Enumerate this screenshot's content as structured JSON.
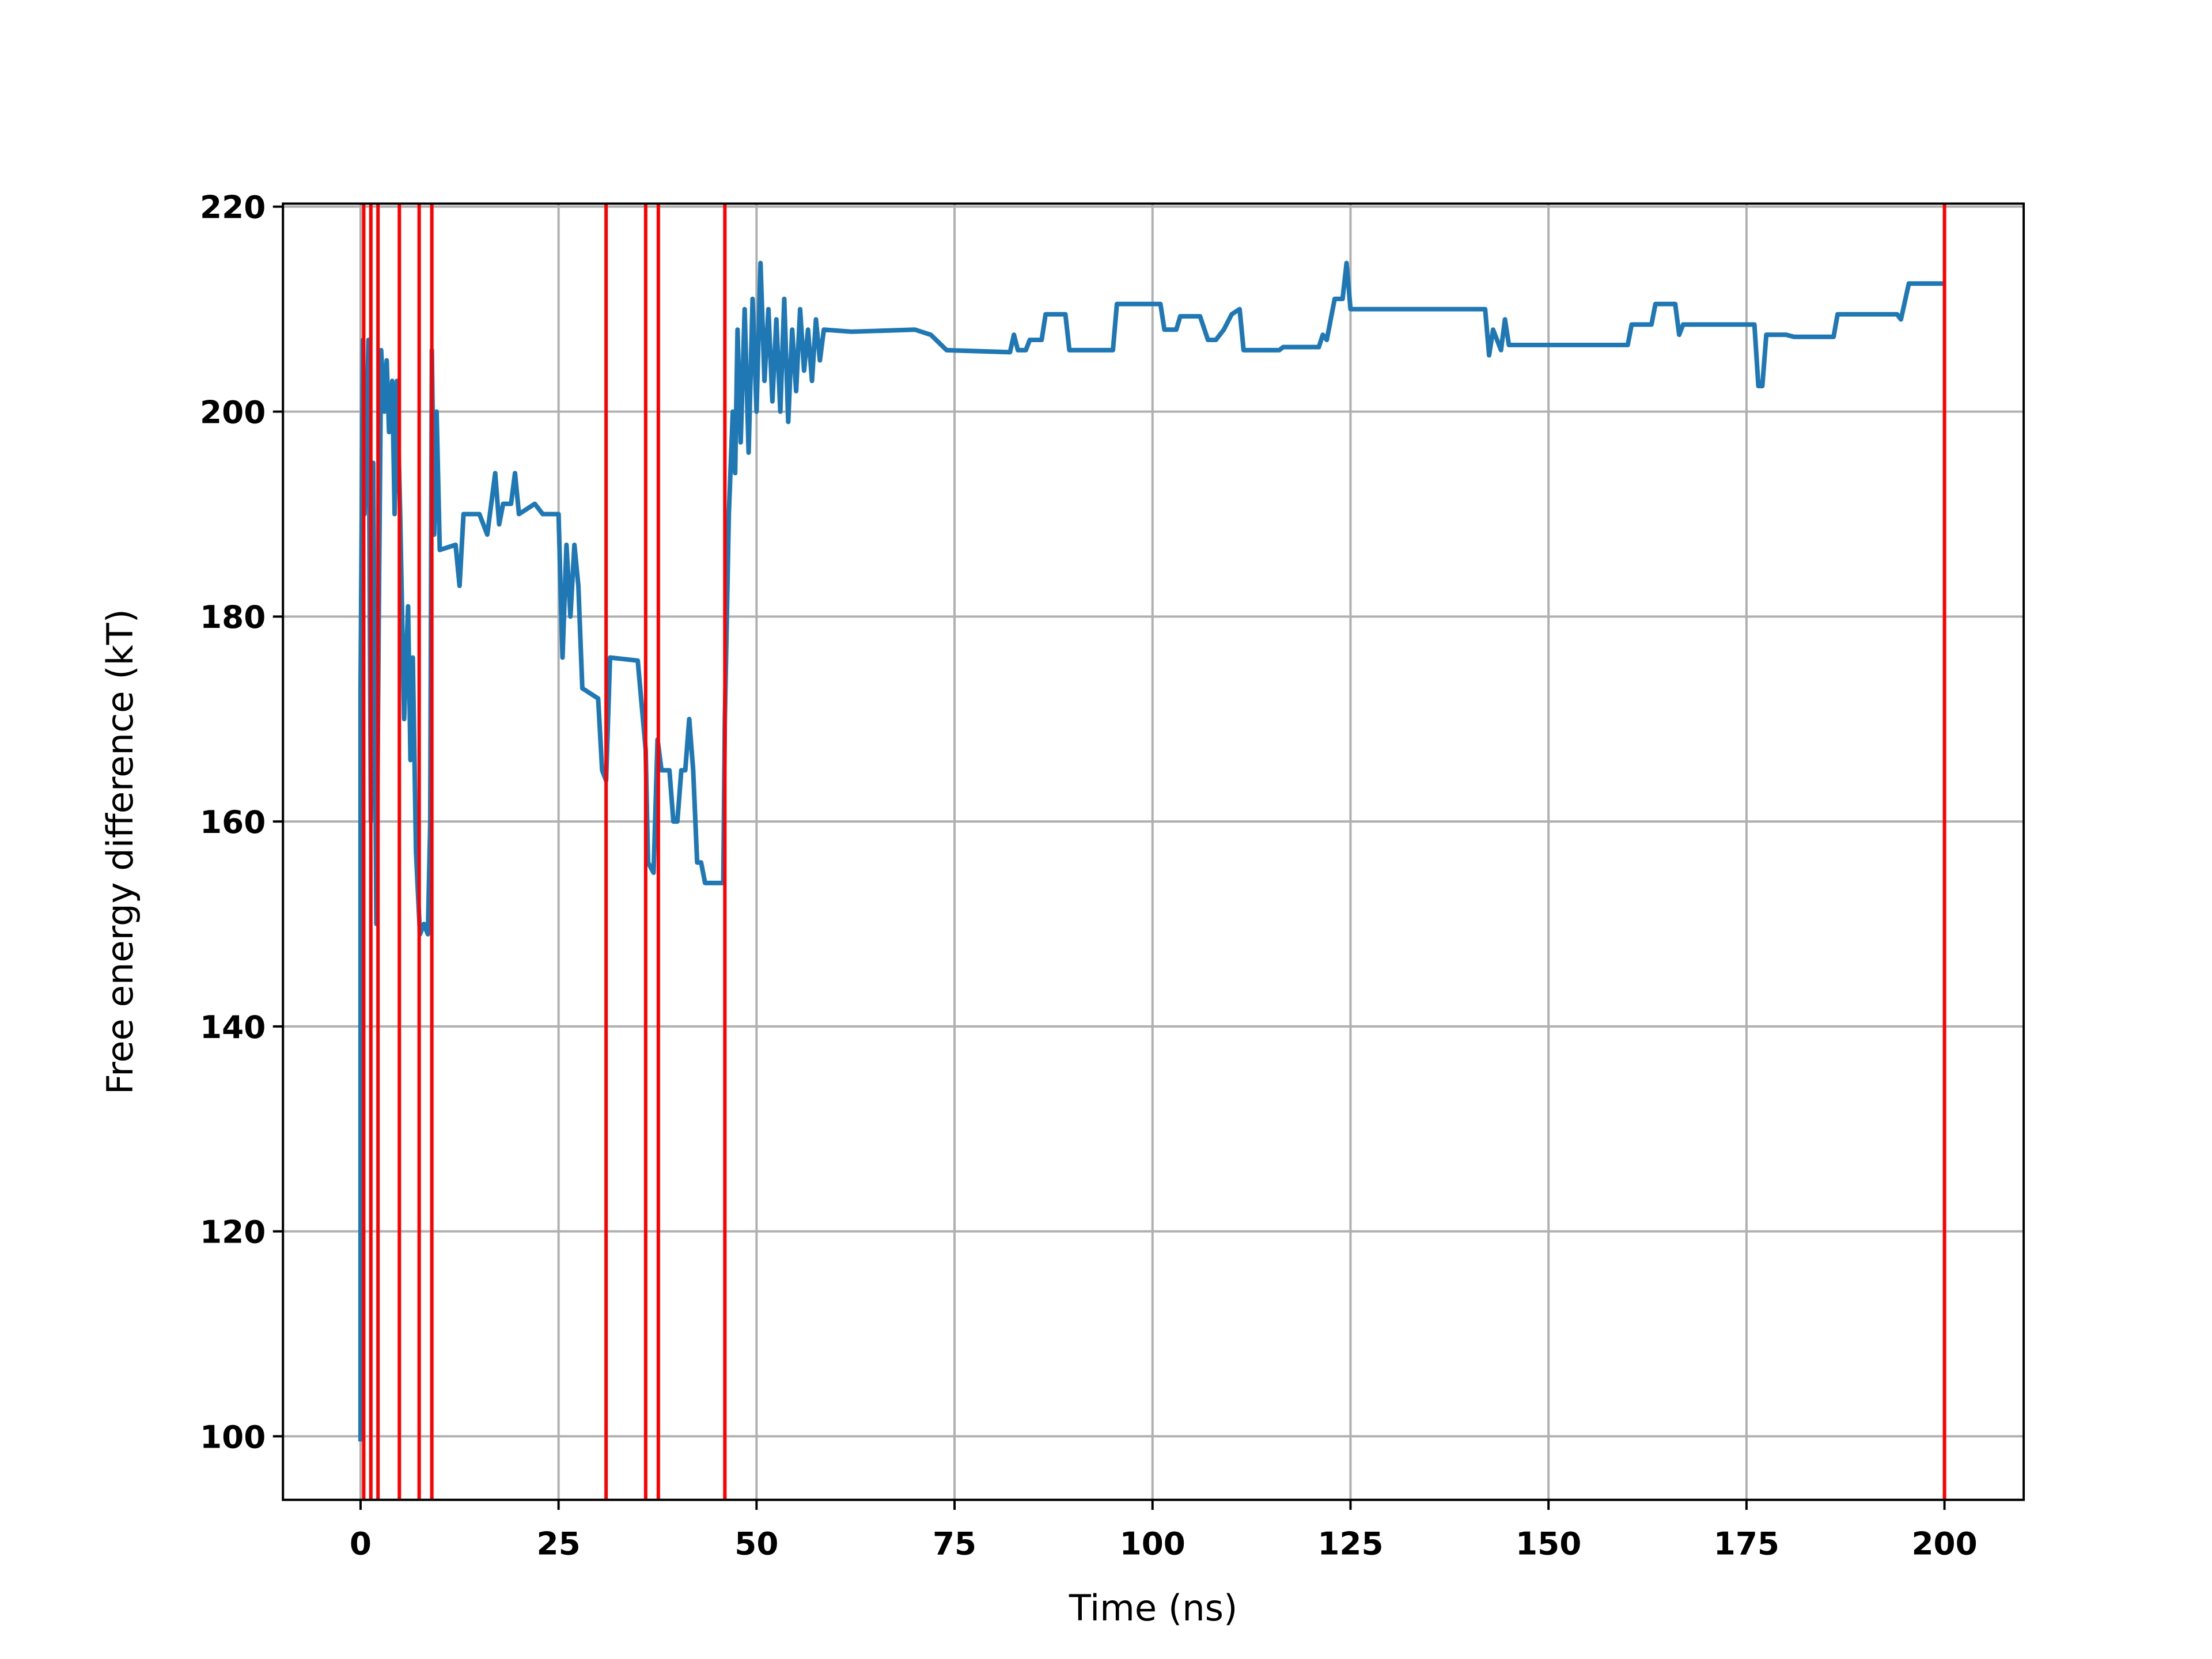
{
  "chart_data": {
    "type": "line",
    "xlabel": "Time (ns)",
    "ylabel": "Free energy difference (kT)",
    "xlim": [
      -9.8,
      210
    ],
    "ylim": [
      93.8,
      220.3
    ],
    "xticks": [
      0,
      25,
      50,
      75,
      100,
      125,
      150,
      175,
      200
    ],
    "yticks": [
      100,
      120,
      140,
      160,
      180,
      200,
      220
    ],
    "grid": true,
    "vlines": {
      "color": "#ff0000",
      "x": [
        0.4,
        1.3,
        2.2,
        4.9,
        7.4,
        9,
        31,
        36,
        37.6,
        46,
        200
      ]
    },
    "series": [
      {
        "color": "#1f77b4",
        "x": [
          0,
          0,
          0.3,
          0.5,
          1,
          1.3,
          1.6,
          2,
          2.3,
          2.6,
          3,
          3.3,
          3.6,
          4,
          4.3,
          4.6,
          5,
          5.5,
          6,
          6.3,
          6.6,
          7,
          7.5,
          8,
          8.5,
          8.8,
          9,
          9.3,
          9.6,
          10,
          12,
          12.5,
          13,
          15,
          16,
          16.5,
          17,
          17.5,
          18,
          19,
          19.5,
          20,
          22,
          23,
          25,
          25.5,
          26,
          26.5,
          27,
          27.5,
          28,
          30,
          30.5,
          31,
          31.5,
          35,
          36,
          36.3,
          37,
          37.5,
          38,
          39,
          39.5,
          40,
          40.5,
          41,
          41.5,
          42,
          42.5,
          43,
          43.5,
          45.8,
          46,
          46.5,
          47,
          47.3,
          47.6,
          48,
          48.5,
          49,
          49.5,
          50,
          50.5,
          51,
          51.5,
          52,
          52.5,
          53,
          53.5,
          54,
          54.5,
          55,
          55.5,
          56,
          56.5,
          57,
          57.5,
          58,
          58.5,
          62,
          70,
          72,
          74,
          82,
          82.5,
          83,
          84,
          84.5,
          86,
          86.5,
          89,
          89.5,
          95,
          95.5,
          101,
          101.5,
          103,
          103.5,
          106,
          107,
          108,
          109,
          110,
          111,
          111.5,
          116,
          116.5,
          121,
          121.5,
          122,
          123,
          124,
          124.5,
          125,
          142,
          142.5,
          143,
          144,
          144.5,
          145,
          160,
          160.5,
          163,
          163.5,
          166,
          166.5,
          167,
          176,
          176.5,
          177,
          177.5,
          180,
          181,
          186,
          186.5,
          194,
          194.5,
          195.5,
          200
        ],
        "values": [
          99.5,
          173,
          207,
          190,
          207,
          160,
          195,
          150,
          180,
          206,
          200,
          205,
          198,
          203,
          190,
          203,
          190,
          170,
          181,
          166,
          176,
          157,
          149,
          150,
          149,
          160,
          206,
          188,
          200,
          186.5,
          187,
          183,
          190,
          190,
          188,
          191,
          194,
          189,
          191,
          191,
          194,
          190,
          191,
          190,
          190,
          176,
          187,
          180,
          187,
          183,
          173,
          172,
          165,
          164,
          176,
          175.7,
          167,
          156,
          155,
          168,
          165,
          165,
          160,
          160,
          165,
          165,
          170,
          165,
          156,
          156,
          154,
          154,
          170,
          190,
          200,
          194,
          208,
          197,
          210,
          196,
          211,
          200,
          214.5,
          203,
          210,
          201,
          209,
          200,
          211,
          199,
          208,
          202,
          210,
          204,
          208,
          203,
          209,
          205,
          208,
          207.8,
          208,
          207.5,
          206,
          205.8,
          207.5,
          206,
          206,
          207,
          207,
          209.5,
          209.5,
          206,
          206,
          210.5,
          210.5,
          208,
          208,
          209.3,
          209.3,
          207,
          207,
          208,
          209.5,
          210,
          206,
          206,
          206.3,
          206.3,
          207.5,
          207,
          211,
          211,
          214.5,
          210,
          210,
          205.5,
          208,
          206,
          209,
          206.5,
          206.5,
          208.5,
          208.5,
          210.5,
          210.5,
          207.5,
          208.5,
          208.5,
          202.5,
          202.5,
          207.5,
          207.5,
          207.3,
          207.3,
          209.5,
          209.5,
          209,
          212.5,
          212.5
        ]
      }
    ]
  }
}
